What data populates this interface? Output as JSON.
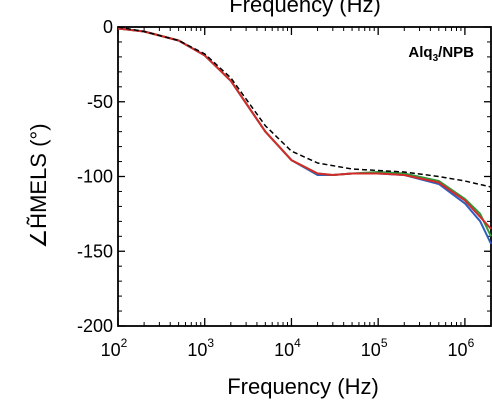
{
  "chart_data": {
    "type": "line",
    "top_title_partial": "Frequency (Hz)",
    "xlabel": "Frequency (Hz)",
    "ylabel": "∠H̃MELS (°)",
    "x_scale": "log",
    "xlim": [
      100,
      2000000
    ],
    "ylim": [
      -200,
      0
    ],
    "x_ticks": [
      {
        "value": 100,
        "base": "10",
        "exp": "2"
      },
      {
        "value": 1000,
        "base": "10",
        "exp": "3"
      },
      {
        "value": 10000,
        "base": "10",
        "exp": "4"
      },
      {
        "value": 100000,
        "base": "10",
        "exp": "5"
      },
      {
        "value": 1000000,
        "base": "10",
        "exp": "6"
      }
    ],
    "y_ticks": [
      0,
      -50,
      -100,
      -150,
      -200
    ],
    "y_tick_labels": [
      "0",
      "-50",
      "-100",
      "-150",
      "-200"
    ],
    "annotation": {
      "main": "Alq",
      "sub": "3",
      "tail": "/NPB"
    },
    "grid": false,
    "series": [
      {
        "color": "#2e5fbf",
        "style": "solid",
        "x": [
          100,
          200,
          500,
          1000,
          2000,
          5000,
          10000,
          20000,
          30000,
          50000,
          100000,
          200000,
          500000,
          1000000,
          1500000,
          2000000
        ],
        "y": [
          -1,
          -3,
          -9,
          -19,
          -36,
          -70,
          -89,
          -99,
          -99,
          -98,
          -98,
          -99,
          -105,
          -118,
          -130,
          -145
        ]
      },
      {
        "color": "#2e9a3a",
        "style": "solid",
        "x": [
          100,
          200,
          500,
          1000,
          2000,
          5000,
          10000,
          20000,
          30000,
          50000,
          100000,
          200000,
          500000,
          1000000,
          1500000,
          2000000
        ],
        "y": [
          -1,
          -3,
          -9,
          -19,
          -36,
          -70,
          -89,
          -98,
          -99,
          -98,
          -97,
          -98,
          -103,
          -115,
          -125,
          -140
        ]
      },
      {
        "color": "#d42a2a",
        "style": "solid",
        "x": [
          100,
          200,
          500,
          1000,
          2000,
          5000,
          10000,
          20000,
          30000,
          50000,
          100000,
          200000,
          500000,
          1000000,
          1500000,
          2000000
        ],
        "y": [
          -1,
          -3,
          -9,
          -19,
          -36,
          -70,
          -89,
          -98,
          -99,
          -98,
          -98,
          -99,
          -104,
          -116,
          -127,
          -135
        ]
      },
      {
        "color": "#000000",
        "style": "dashed",
        "x": [
          100,
          200,
          500,
          1000,
          2000,
          5000,
          10000,
          20000,
          50000,
          100000,
          200000,
          500000,
          1000000,
          2000000
        ],
        "y": [
          0,
          -3,
          -9,
          -18,
          -34,
          -66,
          -83,
          -91,
          -95,
          -96,
          -97,
          -100,
          -103,
          -107
        ]
      }
    ]
  }
}
